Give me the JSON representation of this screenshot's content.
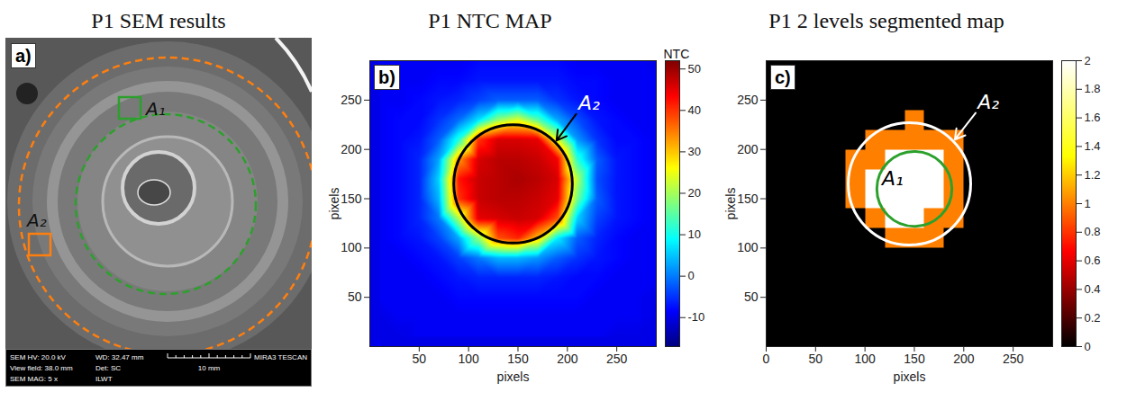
{
  "chart_data": [
    {
      "type": "image",
      "title": "P1 SEM results",
      "panel_label": "a)",
      "regions": [
        {
          "label": "A₁",
          "color": "#2ca02c"
        },
        {
          "label": "A₂",
          "color": "#ff7f0e"
        }
      ],
      "info_bar": {
        "rows": [
          [
            "SEM HV: 20.0 kV",
            "WD: 32.47 mm"
          ],
          [
            "View field: 38.0 mm",
            "Det: SC"
          ],
          [
            "SEM MAG: 5 x",
            "ILWT"
          ]
        ],
        "scale_bar": "10 mm",
        "logo": "MIRA3 TESCAN"
      }
    },
    {
      "type": "heatmap",
      "title": "P1 NTC MAP",
      "panel_label": "b)",
      "xlabel": "pixels",
      "ylabel": "pixels",
      "xlim": [
        0,
        290
      ],
      "ylim": [
        0,
        290
      ],
      "xticks": [
        50,
        100,
        150,
        200,
        250
      ],
      "yticks": [
        50,
        100,
        150,
        200,
        250
      ],
      "x": [
        10,
        30,
        50,
        70,
        90,
        110,
        130,
        150,
        170,
        190,
        210,
        230,
        250,
        270,
        290
      ],
      "y": [
        10,
        30,
        50,
        70,
        90,
        110,
        130,
        150,
        170,
        190,
        210,
        230,
        250,
        270,
        290
      ],
      "values": [
        [
          -10,
          -10,
          -9,
          -9,
          -9,
          -9,
          -9,
          -9,
          -9,
          -9,
          -9,
          -9,
          -10,
          -10,
          -10
        ],
        [
          -10,
          -9,
          -9,
          -9,
          -9,
          -9,
          -9,
          -9,
          -9,
          -9,
          -9,
          -9,
          -9,
          -9,
          -10
        ],
        [
          -9,
          -9,
          -9,
          -9,
          -8,
          -8,
          -8,
          -8,
          -8,
          -8,
          -8,
          -9,
          -9,
          -9,
          -10
        ],
        [
          -9,
          -9,
          -9,
          -8,
          -7,
          -6,
          -6,
          -6,
          -6,
          -7,
          -8,
          -8,
          -9,
          -9,
          -9
        ],
        [
          -9,
          -9,
          -8,
          -7,
          -4,
          0,
          4,
          4,
          2,
          -2,
          -5,
          -7,
          -8,
          -9,
          -9
        ],
        [
          -9,
          -8,
          -7,
          -4,
          3,
          19,
          38,
          41,
          30,
          8,
          -2,
          -6,
          -8,
          -9,
          -9
        ],
        [
          -9,
          -8,
          -6,
          0,
          21,
          45,
          46,
          47,
          46,
          38,
          6,
          -4,
          -7,
          -8,
          -9
        ],
        [
          -9,
          -8,
          -6,
          4,
          40,
          47,
          48,
          48,
          47,
          45,
          17,
          -2,
          -7,
          -8,
          -9
        ],
        [
          -9,
          -8,
          -6,
          6,
          42,
          47,
          48,
          49,
          48,
          46,
          21,
          -3,
          -7,
          -8,
          -9
        ],
        [
          -9,
          -8,
          -6,
          3,
          33,
          46,
          48,
          48,
          47,
          44,
          12,
          -2,
          -7,
          -8,
          -9
        ],
        [
          -9,
          -8,
          -7,
          -2,
          11,
          40,
          46,
          46,
          45,
          24,
          2,
          -5,
          -8,
          -8,
          -9
        ],
        [
          -9,
          -8,
          -8,
          -5,
          -1,
          7,
          19,
          24,
          15,
          3,
          -3,
          -7,
          -8,
          -9,
          -9
        ],
        [
          -9,
          -9,
          -8,
          -7,
          -6,
          -4,
          -2,
          -2,
          -2,
          -5,
          -7,
          -8,
          -9,
          -9,
          -9
        ],
        [
          -9,
          -9,
          -9,
          -8,
          -8,
          -7,
          -7,
          -7,
          -7,
          -7,
          -8,
          -8,
          -9,
          -9,
          -9
        ],
        [
          -9,
          -9,
          -9,
          -9,
          -9,
          -8,
          -8,
          -8,
          -8,
          -8,
          -9,
          -9,
          -9,
          -9,
          -10
        ]
      ],
      "colorbar": {
        "label": "NTC",
        "range": [
          -17,
          52
        ],
        "ticks": [
          -10,
          0,
          10,
          20,
          30,
          40,
          50
        ]
      },
      "annotations": [
        {
          "text": "A₂"
        }
      ]
    },
    {
      "type": "heatmap",
      "title": "P1 2 levels segmented map",
      "panel_label": "c)",
      "xlabel": "pixels",
      "ylabel": "pixels",
      "xlim": [
        0,
        290
      ],
      "ylim": [
        0,
        290
      ],
      "xticks": [
        0,
        50,
        100,
        150,
        200,
        250
      ],
      "yticks": [
        50,
        100,
        150,
        200,
        250
      ],
      "x": [
        10,
        30,
        50,
        70,
        90,
        110,
        130,
        150,
        170,
        190,
        210,
        230,
        250,
        270,
        290
      ],
      "y": [
        10,
        30,
        50,
        70,
        90,
        110,
        130,
        150,
        170,
        190,
        210,
        230,
        250,
        270,
        290
      ],
      "values": [
        [
          0,
          0,
          0,
          0,
          0,
          0,
          0,
          0,
          0,
          0,
          0,
          0,
          0,
          0,
          0
        ],
        [
          0,
          0,
          0,
          0,
          0,
          0,
          0,
          0,
          0,
          0,
          0,
          0,
          0,
          0,
          0
        ],
        [
          0,
          0,
          0,
          0,
          0,
          0,
          0,
          0,
          0,
          0,
          0,
          0,
          0,
          0,
          0
        ],
        [
          0,
          0,
          0,
          0,
          0,
          0,
          0,
          0,
          0,
          0,
          0,
          0,
          0,
          0,
          0
        ],
        [
          0,
          0,
          0,
          0,
          0,
          0,
          0,
          0,
          0,
          0,
          0,
          0,
          0,
          0,
          0
        ],
        [
          0,
          0,
          0,
          0,
          0,
          0,
          1,
          1,
          1,
          0,
          0,
          0,
          0,
          0,
          0
        ],
        [
          0,
          0,
          0,
          0,
          0,
          1,
          2,
          2,
          1,
          1,
          0,
          0,
          0,
          0,
          0
        ],
        [
          0,
          0,
          0,
          0,
          1,
          2,
          2,
          2,
          2,
          1,
          0,
          0,
          0,
          0,
          0
        ],
        [
          0,
          0,
          0,
          0,
          1,
          2,
          2,
          2,
          2,
          1,
          0,
          0,
          0,
          0,
          0
        ],
        [
          0,
          0,
          0,
          0,
          1,
          1,
          2,
          2,
          2,
          1,
          0,
          0,
          0,
          0,
          0
        ],
        [
          0,
          0,
          0,
          0,
          0,
          1,
          1,
          1,
          1,
          1,
          0,
          0,
          0,
          0,
          0
        ],
        [
          0,
          0,
          0,
          0,
          0,
          0,
          0,
          1,
          0,
          0,
          0,
          0,
          0,
          0,
          0
        ],
        [
          0,
          0,
          0,
          0,
          0,
          0,
          0,
          0,
          0,
          0,
          0,
          0,
          0,
          0,
          0
        ],
        [
          0,
          0,
          0,
          0,
          0,
          0,
          0,
          0,
          0,
          0,
          0,
          0,
          0,
          0,
          0
        ],
        [
          0,
          0,
          0,
          0,
          0,
          0,
          0,
          0,
          0,
          0,
          0,
          0,
          0,
          0,
          0
        ]
      ],
      "colorbar": {
        "range": [
          0,
          2
        ],
        "ticks": [
          0,
          0.2,
          0.4,
          0.6,
          0.8,
          1,
          1.2,
          1.4,
          1.6,
          1.8,
          2
        ]
      },
      "annotations": [
        {
          "text": "A₁"
        },
        {
          "text": "A₂"
        }
      ]
    }
  ]
}
